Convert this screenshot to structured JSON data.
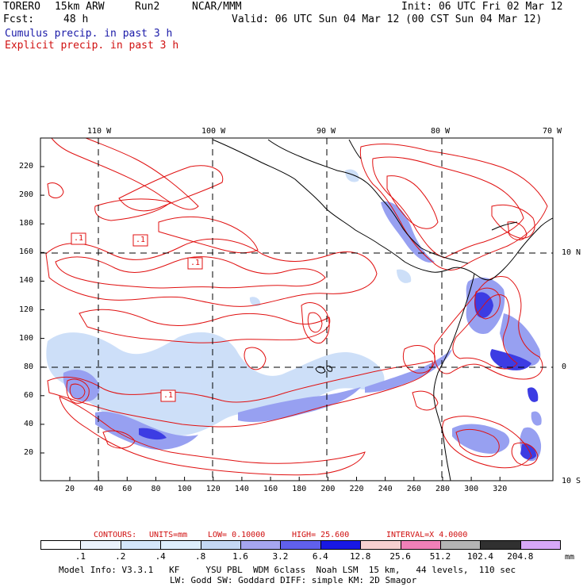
{
  "header": {
    "model": "TORERO",
    "resolution": "15km ARW",
    "run": "Run2",
    "org": "NCAR/MMM",
    "init": "Init: 06 UTC Fri 02 Mar 12",
    "fcst_label": "Fcst:",
    "fcst_value": "48 h",
    "valid": "Valid: 06 UTC Sun 04 Mar 12 (00 CST Sun 04 Mar 12)",
    "cumulus": "Cumulus precip. in past 3 h",
    "explicit": "Explicit precip. in past 3 h"
  },
  "map": {
    "lon_labels": [
      "110 W",
      "100 W",
      "90 W",
      "80 W",
      "70 W"
    ],
    "lat_labels": [
      "10 N",
      "0",
      "10 S"
    ],
    "y_ticks": [
      "20",
      "40",
      "60",
      "80",
      "100",
      "120",
      "140",
      "160",
      "180",
      "200",
      "220"
    ],
    "x_ticks": [
      "20",
      "40",
      "60",
      "80",
      "100",
      "120",
      "140",
      "160",
      "180",
      "200",
      "220",
      "240",
      "260",
      "280",
      "300",
      "320"
    ],
    "contour_labels": [
      ".1",
      ".1",
      ".1",
      ".1"
    ],
    "colors": {
      "contour": "#e01010",
      "coast": "#000000",
      "light": "#c8dcf8",
      "mid": "#8c96f0",
      "dark": "#2828e0"
    }
  },
  "contour_info": {
    "label": "CONTOURS:",
    "units": "UNITS=mm",
    "low": "LOW= 0.10000",
    "high": "HIGH= 25.600",
    "interval": "INTERVAL=X 4.0000"
  },
  "colorbar": {
    "values": [
      ".1",
      ".2",
      ".4",
      ".8",
      "1.6",
      "3.2",
      "6.4",
      "12.8",
      "25.6",
      "51.2",
      "102.4",
      "204.8"
    ],
    "unit": "mm",
    "colors": [
      "#ffffff",
      "#eaf2fc",
      "#d4e6fa",
      "#ddeefc",
      "#c4d8f4",
      "#a6a6f0",
      "#6060ec",
      "#1818e4",
      "#f6d0d0",
      "#f080b8",
      "#b4b4b4",
      "#303030",
      "#d8a8f8"
    ]
  },
  "footer": {
    "line1": "Model Info: V3.3.1   KF     YSU PBL  WDM 6class  Noah LSM  15 km,   44 levels,  110 sec",
    "line2": "LW: Godd SW: Goddard DIFF: simple KM: 2D Smagor"
  }
}
